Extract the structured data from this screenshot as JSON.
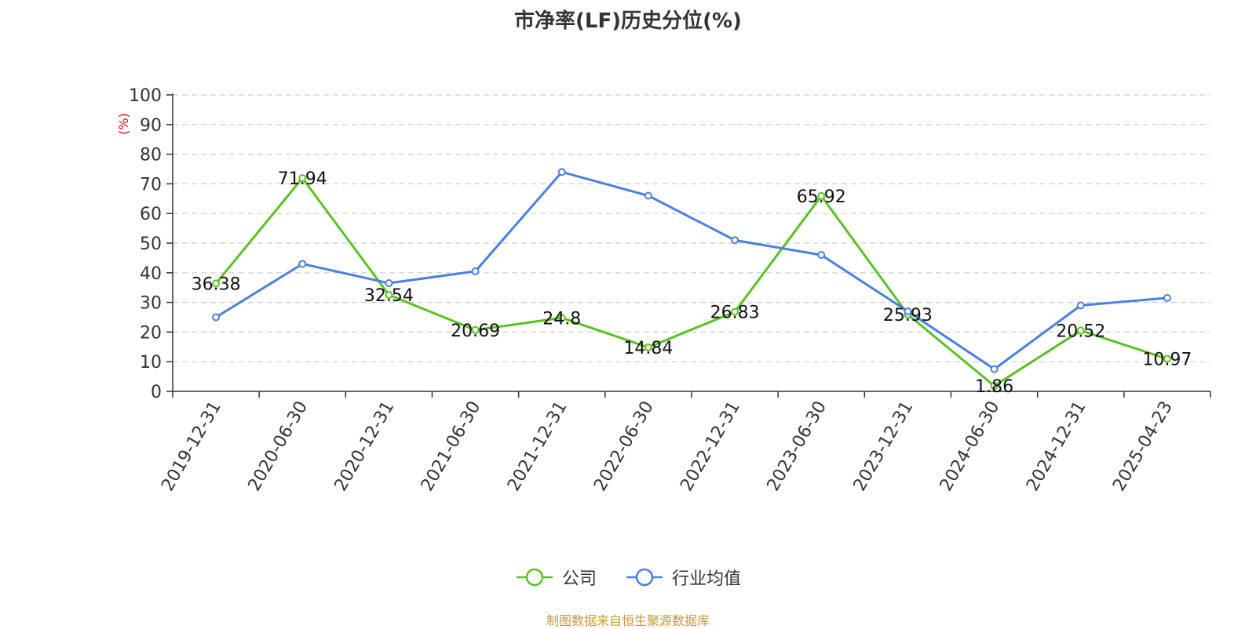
{
  "chart_data": {
    "type": "line",
    "title": "市净率(LF)历史分位(%)",
    "ylabel": "(%)",
    "ylim": [
      0,
      100
    ],
    "yticks": [
      0,
      10,
      20,
      30,
      40,
      50,
      60,
      70,
      80,
      90,
      100
    ],
    "grid": true,
    "legend_position": "bottom-center",
    "categories": [
      "2019-12-31",
      "2020-06-30",
      "2020-12-31",
      "2021-06-30",
      "2021-12-31",
      "2022-06-30",
      "2022-12-31",
      "2023-06-30",
      "2023-12-31",
      "2024-06-30",
      "2024-12-31",
      "2025-04-23"
    ],
    "series": [
      {
        "name": "公司",
        "color": "#5ac122",
        "show_labels": true,
        "values": [
          36.38,
          71.94,
          32.54,
          20.69,
          24.8,
          14.84,
          26.83,
          65.92,
          25.93,
          1.86,
          20.52,
          10.97
        ]
      },
      {
        "name": "行业均值",
        "color": "#4a80e0",
        "show_labels": false,
        "values": [
          25,
          43,
          36.5,
          40.5,
          74,
          66,
          51,
          46,
          27,
          7.5,
          29,
          31.5
        ]
      }
    ],
    "source": "制图数据来自恒生聚源数据库"
  }
}
